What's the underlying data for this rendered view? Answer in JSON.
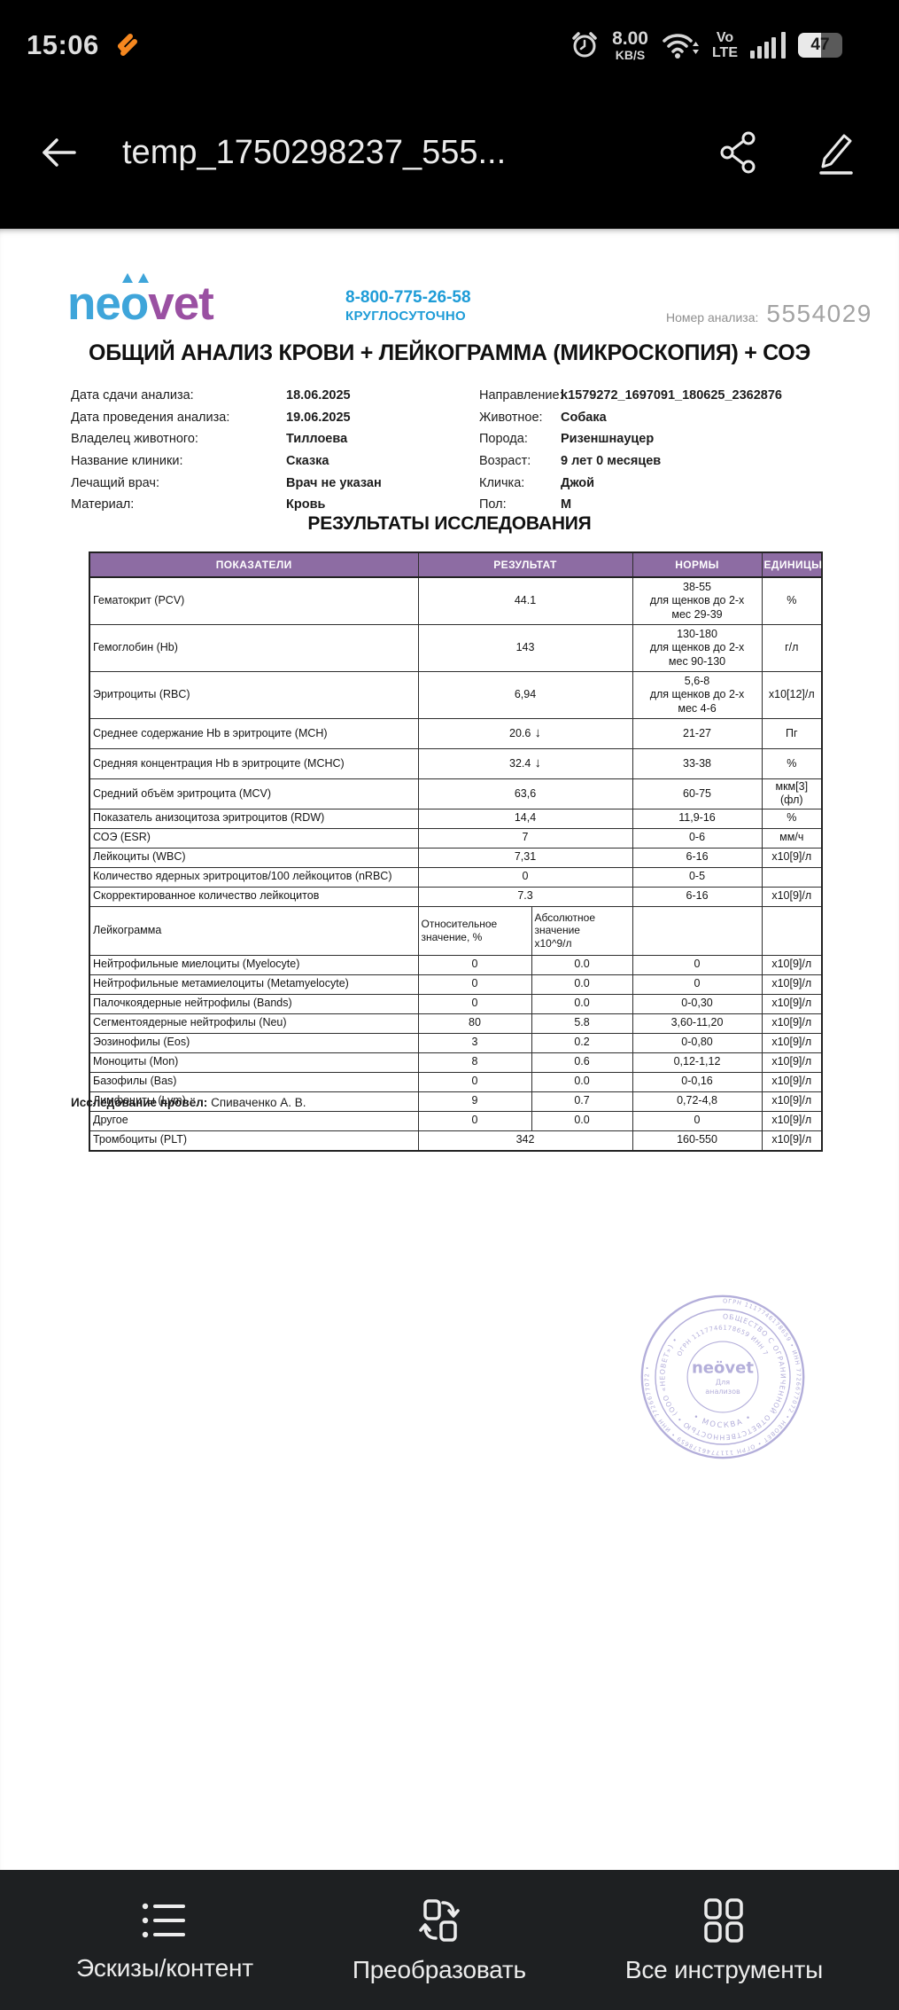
{
  "status_bar": {
    "time": "15:06",
    "net_speed_value": "8.00",
    "net_speed_unit": "KB/S",
    "volte_line1": "Vo",
    "volte_line2": "LTE",
    "battery_percent": "47"
  },
  "app_bar": {
    "title": "temp_1750298237_555..."
  },
  "document": {
    "logo": {
      "neo": "neo",
      "vet": "vet",
      "phone": "8-800-775-26-58",
      "phone_note": "КРУГЛОСУТОЧНО",
      "analysis_no_label": "Номер анализа:",
      "analysis_no": "5554029"
    },
    "title": "ОБЩИЙ АНАЛИЗ КРОВИ + ЛЕЙКОГРАММА (МИКРОСКОПИЯ) + СОЭ",
    "meta_left": [
      {
        "label": "Дата сдачи анализа:",
        "value": "18.06.2025"
      },
      {
        "label": "Дата проведения анализа:",
        "value": "19.06.2025"
      },
      {
        "label": "Владелец животного:",
        "value": "Тиллоева"
      },
      {
        "label": "Название клиники:",
        "value": "Сказка"
      },
      {
        "label": "Лечащий врач:",
        "value": "Врач не указан"
      },
      {
        "label": "Материал:",
        "value": "Кровь"
      }
    ],
    "meta_right": [
      {
        "label": "Направление:",
        "value": "k1579272_1697091_180625_2362876"
      },
      {
        "label": "Животное:",
        "value": "Собака"
      },
      {
        "label": "Порода:",
        "value": "Ризеншнауцер"
      },
      {
        "label": "Возраст:",
        "value": "9 лет 0 месяцев"
      },
      {
        "label": "Кличка:",
        "value": "Джой"
      },
      {
        "label": "Пол:",
        "value": "М"
      }
    ],
    "results_title": "РЕЗУЛЬТАТЫ ИССЛЕДОВАНИЯ",
    "table": {
      "headers": [
        "ПОКАЗАТЕЛИ",
        "РЕЗУЛЬТАТ",
        "НОРМЫ",
        "ЕДИНИЦЫ"
      ],
      "rows": [
        {
          "kind": "span",
          "h": "tall",
          "name": "Гематокрит (PCV)",
          "result": "44.1",
          "arrow": false,
          "norm": "38-55\nдля щенков до 2-х\nмес 29-39",
          "unit": "%"
        },
        {
          "kind": "span",
          "h": "tall",
          "name": "Гемоглобин (Hb)",
          "result": "143",
          "arrow": false,
          "norm": "130-180\nдля щенков до 2-х\nмес 90-130",
          "unit": "г/л"
        },
        {
          "kind": "span",
          "h": "tall",
          "name": "Эритроциты (RBC)",
          "result": "6,94",
          "arrow": false,
          "norm": "5,6-8\nдля щенков до 2-х\nмес 4-6",
          "unit": "x10[12]/л"
        },
        {
          "kind": "span",
          "h": "arrow",
          "name": "Среднее содержание Hb в эритроците (MCH)",
          "result": "20.6",
          "arrow": true,
          "norm": "21-27",
          "unit": "Пг"
        },
        {
          "kind": "span",
          "h": "arrow",
          "name": "Средняя концентрация Hb в эритроците (MCHC)",
          "result": "32.4",
          "arrow": true,
          "norm": "33-38",
          "unit": "%"
        },
        {
          "kind": "span",
          "h": "def",
          "name": "Средний объём эритроцита (MCV)",
          "result": "63,6",
          "arrow": false,
          "norm": "60-75",
          "unit": "мкм[3](фл)"
        },
        {
          "kind": "span",
          "h": "def",
          "name": "Показатель анизоцитоза эритроцитов (RDW)",
          "result": "14,4",
          "arrow": false,
          "norm": "11,9-16",
          "unit": "%"
        },
        {
          "kind": "span",
          "h": "def",
          "name": "СОЭ (ESR)",
          "result": "7",
          "arrow": false,
          "norm": "0-6",
          "unit": "мм/ч"
        },
        {
          "kind": "span",
          "h": "def",
          "name": "Лейкоциты (WBC)",
          "result": "7,31",
          "arrow": false,
          "norm": "6-16",
          "unit": "x10[9]/л"
        },
        {
          "kind": "span",
          "h": "def",
          "name": "Количество ядерных эритроцитов/100 лейкоцитов (nRBC)",
          "result": "0",
          "arrow": false,
          "norm": "0-5",
          "unit": ""
        },
        {
          "kind": "span",
          "h": "def",
          "name": "Скорректированное количество лейкоцитов",
          "result": "7.3",
          "arrow": false,
          "norm": "6-16",
          "unit": "x10[9]/л"
        },
        {
          "kind": "head2",
          "h": "lhead",
          "name": "Лейкограмма",
          "rel": "Относительное\nзначение, %",
          "abs": "Абсолютное\nзначение\nх10^9/л",
          "norm": "",
          "unit": ""
        },
        {
          "kind": "split",
          "h": "def",
          "name": "Нейтрофильные миелоциты (Myelocyte)",
          "rel": "0",
          "abs": "0.0",
          "norm": "0",
          "unit": "x10[9]/л"
        },
        {
          "kind": "split",
          "h": "def",
          "name": "Нейтрофильные метамиелоциты (Metamyelocyte)",
          "rel": "0",
          "abs": "0.0",
          "norm": "0",
          "unit": "x10[9]/л"
        },
        {
          "kind": "split",
          "h": "def",
          "name": "Палочкоядерные нейтрофилы (Bands)",
          "rel": "0",
          "abs": "0.0",
          "norm": "0-0,30",
          "unit": "x10[9]/л"
        },
        {
          "kind": "split",
          "h": "def",
          "name": "Сегментоядерные нейтрофилы (Neu)",
          "rel": "80",
          "abs": "5.8",
          "norm": "3,60-11,20",
          "unit": "x10[9]/л"
        },
        {
          "kind": "split",
          "h": "def",
          "name": "Эозинофилы (Eos)",
          "rel": "3",
          "abs": "0.2",
          "norm": "0-0,80",
          "unit": "x10[9]/л"
        },
        {
          "kind": "split",
          "h": "def",
          "name": "Моноциты (Mon)",
          "rel": "8",
          "abs": "0.6",
          "norm": "0,12-1,12",
          "unit": "x10[9]/л"
        },
        {
          "kind": "split",
          "h": "def",
          "name": "Базофилы (Bas)",
          "rel": "0",
          "abs": "0.0",
          "norm": "0-0,16",
          "unit": "x10[9]/л"
        },
        {
          "kind": "split",
          "h": "def",
          "name": "Лимфоциты (Lym)",
          "rel": "9",
          "abs": "0.7",
          "norm": "0,72-4,8",
          "unit": "x10[9]/л"
        },
        {
          "kind": "split",
          "h": "def",
          "name": "Другое",
          "rel": "0",
          "abs": "0.0",
          "norm": "0",
          "unit": "x10[9]/л"
        },
        {
          "kind": "span",
          "h": "def",
          "name": "Тромбоциты (PLT)",
          "result": "342",
          "arrow": false,
          "norm": "160-550",
          "unit": "x10[9]/л"
        }
      ]
    },
    "footer_label": "Исследование провёл:",
    "footer_value": "Спиваченко А. В.",
    "stamp": {
      "outer_ring": "ОГРН 1117746178659 • ИНН 7726677072 • НЕОВЕТ • ОГРН 1117746178659 • ИНН 7726677072 •",
      "org_ring": "ОБЩЕСТВО С ОГРАНИЧЕННОЙ ОТВЕТСТВЕННОСТЬЮ • (ООО «НЕОВЕТ») •",
      "inner_ring": "ОГРН 1117746178659 ИНН 7726677072",
      "bottom_text": "• МОСКВА •",
      "center_logo": "neövet",
      "center_line1": "Для",
      "center_line2": "анализов",
      "color": "#a39dd2"
    }
  },
  "toolbar": {
    "items": [
      {
        "label": "Эскизы/контент"
      },
      {
        "label": "Преобразовать"
      },
      {
        "label": "Все инструменты"
      }
    ]
  }
}
